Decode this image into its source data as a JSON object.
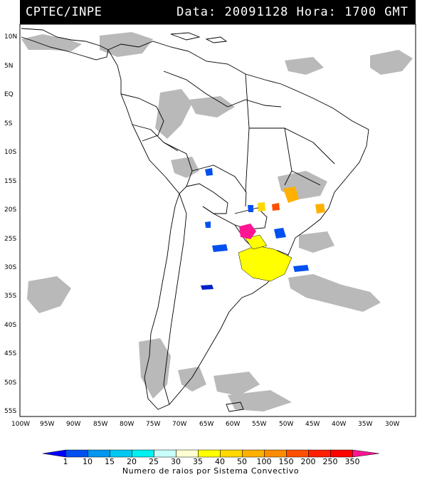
{
  "header": {
    "source": "CPTEC/INPE",
    "date_label": "Data:",
    "date_value": "20091128",
    "hour_label": "Hora:",
    "hour_value": "1700 GMT"
  },
  "map": {
    "lon_range": [
      -100,
      -25
    ],
    "lat_range": [
      -56,
      13
    ],
    "lat_ticks": [
      "10N",
      "5N",
      "EQ",
      "5S",
      "10S",
      "15S",
      "20S",
      "25S",
      "30S",
      "35S",
      "40S",
      "45S",
      "50S",
      "55S"
    ],
    "lon_ticks": [
      "100W",
      "95W",
      "90W",
      "85W",
      "80W",
      "75W",
      "70W",
      "65W",
      "60W",
      "55W",
      "50W",
      "45W",
      "40W",
      "35W",
      "30W"
    ]
  },
  "colorbar": {
    "labels": [
      "1",
      "10",
      "15",
      "20",
      "25",
      "30",
      "35",
      "40",
      "50",
      "100",
      "150",
      "200",
      "250",
      "350"
    ],
    "colors": [
      "#0000ff",
      "#0050f0",
      "#0096f0",
      "#00c8f0",
      "#00f0f0",
      "#c8fff8",
      "#ffffd2",
      "#ffff00",
      "#ffd800",
      "#ffb000",
      "#ff8c00",
      "#ff5000",
      "#ff2000",
      "#ff0000",
      "#ff1493"
    ],
    "title": "Numero de raios por Sistema Convectivo"
  },
  "colors": {
    "cloud_gray": "#b4b4b4",
    "header_bg": "#000000"
  }
}
